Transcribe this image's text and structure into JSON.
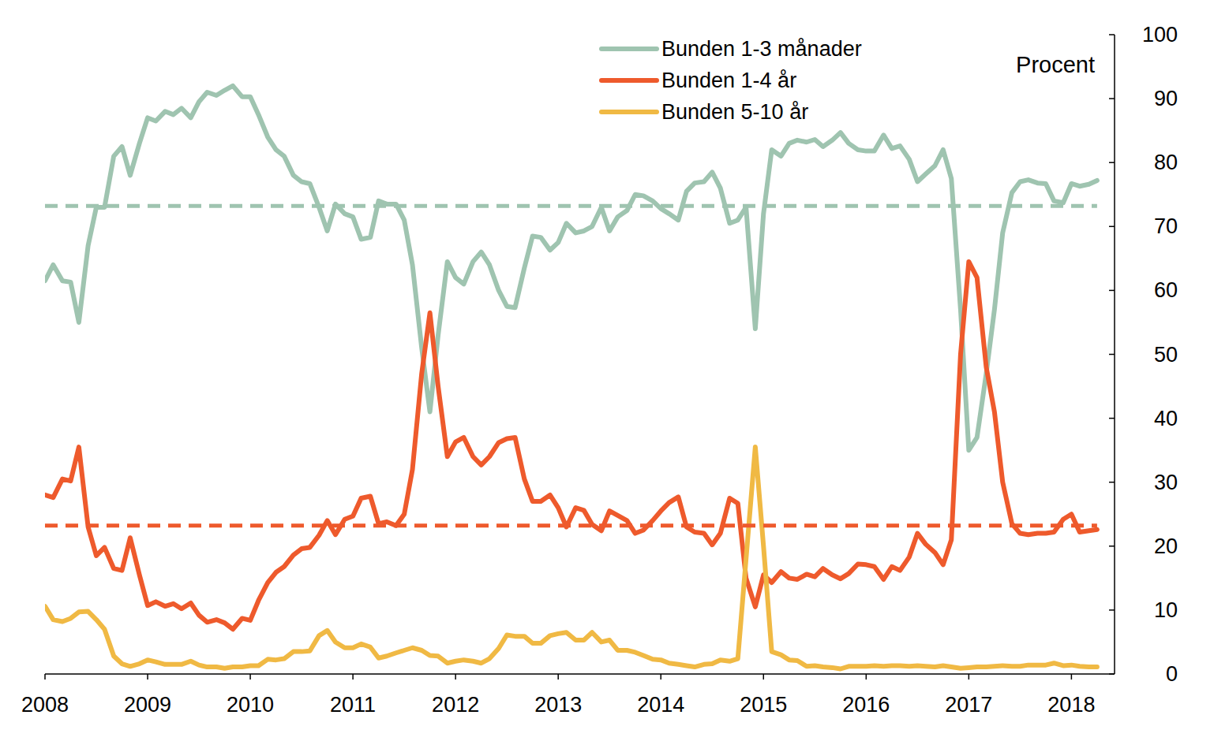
{
  "chart_data": {
    "type": "line",
    "y_label": "Procent",
    "legend": "top",
    "grid": false,
    "xlim": [
      2008,
      2018.42
    ],
    "xticks": [
      2008,
      2009,
      2010,
      2011,
      2012,
      2013,
      2014,
      2015,
      2016,
      2017,
      2018
    ],
    "ylim": [
      0,
      100
    ],
    "yticks": [
      0,
      10,
      20,
      30,
      40,
      50,
      60,
      70,
      80,
      90,
      100
    ],
    "x": [
      2008,
      2008.08,
      2008.17,
      2008.25,
      2008.33,
      2008.42,
      2008.5,
      2008.58,
      2008.67,
      2008.75,
      2008.83,
      2008.92,
      2009,
      2009.08,
      2009.17,
      2009.25,
      2009.33,
      2009.42,
      2009.5,
      2009.58,
      2009.67,
      2009.75,
      2009.83,
      2009.92,
      2010,
      2010.08,
      2010.17,
      2010.25,
      2010.33,
      2010.42,
      2010.5,
      2010.58,
      2010.67,
      2010.75,
      2010.83,
      2010.92,
      2011,
      2011.08,
      2011.17,
      2011.25,
      2011.33,
      2011.42,
      2011.5,
      2011.58,
      2011.67,
      2011.75,
      2011.83,
      2011.92,
      2012,
      2012.08,
      2012.17,
      2012.25,
      2012.33,
      2012.42,
      2012.5,
      2012.58,
      2012.67,
      2012.75,
      2012.83,
      2012.92,
      2013,
      2013.08,
      2013.17,
      2013.25,
      2013.33,
      2013.42,
      2013.5,
      2013.58,
      2013.67,
      2013.75,
      2013.83,
      2013.92,
      2014,
      2014.08,
      2014.17,
      2014.25,
      2014.33,
      2014.42,
      2014.5,
      2014.58,
      2014.67,
      2014.75,
      2014.83,
      2014.92,
      2015,
      2015.08,
      2015.17,
      2015.25,
      2015.33,
      2015.42,
      2015.5,
      2015.58,
      2015.67,
      2015.75,
      2015.83,
      2015.92,
      2016,
      2016.08,
      2016.17,
      2016.25,
      2016.33,
      2016.42,
      2016.5,
      2016.58,
      2016.67,
      2016.75,
      2016.83,
      2016.92,
      2017,
      2017.08,
      2017.17,
      2017.25,
      2017.33,
      2017.42,
      2017.5,
      2017.58,
      2017.67,
      2017.75,
      2017.83,
      2017.92,
      2018,
      2018.08,
      2018.17,
      2018.25
    ],
    "series": [
      {
        "name": "Bunden 1-3 månader",
        "color": "#9fc4b0",
        "line_style": "solid",
        "values": [
          61.5,
          64,
          61.5,
          61.3,
          55,
          67,
          73,
          73,
          81,
          82.5,
          78,
          83,
          87,
          86.5,
          88,
          87.5,
          88.5,
          87,
          89.5,
          91,
          90.5,
          91.3,
          92,
          90.3,
          90.3,
          87.5,
          84,
          82,
          81,
          78,
          77,
          76.7,
          73,
          69.3,
          73.5,
          72,
          71.5,
          68,
          68.3,
          74,
          73.5,
          73.5,
          71,
          64,
          51,
          41,
          53,
          64.5,
          62,
          61,
          64.5,
          66,
          64,
          60,
          57.5,
          57.3,
          63.5,
          68.5,
          68.3,
          66.3,
          67.5,
          70.5,
          69,
          69.3,
          70,
          73,
          69.3,
          71.5,
          72.5,
          75,
          74.8,
          74,
          72.8,
          72,
          71,
          75.5,
          76.8,
          77,
          78.5,
          76,
          70.5,
          71,
          73,
          54,
          72,
          82,
          81,
          83,
          83.5,
          83.2,
          83.6,
          82.5,
          83.5,
          84.7,
          83,
          82,
          81.8,
          81.8,
          84.3,
          82.2,
          82.6,
          80.5,
          77,
          78.2,
          79.5,
          82,
          77.5,
          57,
          35,
          37,
          47,
          57,
          69,
          75.3,
          77,
          77.3,
          76.8,
          76.7,
          74,
          73.7,
          76.7,
          76.3,
          76.6,
          77.2
        ]
      },
      {
        "name": "Bunden 1-4 år",
        "color": "#ee5a2c",
        "line_style": "solid",
        "values": [
          28,
          27.6,
          30.5,
          30.2,
          35.5,
          23,
          18.5,
          19.8,
          16.5,
          16.2,
          21.3,
          15.5,
          10.7,
          11.3,
          10.6,
          11,
          10.2,
          11.1,
          9.2,
          8.1,
          8.5,
          8,
          7,
          8.7,
          8.4,
          11.5,
          14.3,
          15.9,
          16.8,
          18.6,
          19.6,
          19.8,
          21.7,
          24,
          21.8,
          24.2,
          24.7,
          27.5,
          27.8,
          23.5,
          23.8,
          23.2,
          25,
          32,
          47,
          56.5,
          45,
          34,
          36.3,
          37,
          34,
          32.7,
          34,
          36.2,
          36.8,
          37,
          30.5,
          27,
          27,
          28,
          26,
          23,
          26,
          25.6,
          23.4,
          22.4,
          25.5,
          24.8,
          24,
          22,
          22.5,
          24,
          25.5,
          26.8,
          27.7,
          23,
          22.2,
          22,
          20.2,
          22,
          27.5,
          26.7,
          15,
          10.5,
          15.5,
          14.3,
          16,
          15,
          14.8,
          15.6,
          15.2,
          16.5,
          15.5,
          14.9,
          15.7,
          17.2,
          17.1,
          16.8,
          14.8,
          16.8,
          16.2,
          18.3,
          22,
          20.3,
          19,
          17.1,
          21,
          50,
          64.5,
          62,
          48,
          41,
          30,
          23.5,
          22,
          21.8,
          22,
          22,
          22.2,
          24.2,
          25,
          22.2,
          22.4,
          22.6
        ]
      },
      {
        "name": "Bunden 5-10 år",
        "color": "#f0b944",
        "line_style": "solid",
        "values": [
          10.6,
          8.5,
          8.2,
          8.7,
          9.7,
          9.8,
          8.5,
          7,
          2.8,
          1.6,
          1.2,
          1.6,
          2.2,
          1.9,
          1.5,
          1.5,
          1.5,
          2,
          1.4,
          1.1,
          1.1,
          0.9,
          1.1,
          1.1,
          1.3,
          1.3,
          2.3,
          2.2,
          2.4,
          3.5,
          3.5,
          3.6,
          6,
          6.8,
          5,
          4.1,
          4.1,
          4.7,
          4.2,
          2.5,
          2.8,
          3.3,
          3.7,
          4.1,
          3.7,
          2.9,
          2.8,
          1.7,
          2,
          2.2,
          2,
          1.7,
          2.4,
          4,
          6.1,
          5.9,
          5.9,
          4.8,
          4.8,
          6,
          6.3,
          6.5,
          5.3,
          5.3,
          6.5,
          5,
          5.3,
          3.7,
          3.7,
          3.4,
          2.9,
          2.3,
          2.2,
          1.7,
          1.5,
          1.3,
          1.1,
          1.5,
          1.6,
          2.2,
          2,
          2.4,
          18,
          35.5,
          20,
          3.5,
          3,
          2.2,
          2.1,
          1.2,
          1.3,
          1.1,
          1,
          0.8,
          1.2,
          1.2,
          1.2,
          1.3,
          1.2,
          1.3,
          1.3,
          1.2,
          1.3,
          1.2,
          1.1,
          1.3,
          1.1,
          0.9,
          1,
          1.1,
          1.1,
          1.2,
          1.3,
          1.2,
          1.2,
          1.4,
          1.4,
          1.4,
          1.7,
          1.3,
          1.4,
          1.2,
          1.1,
          1.1
        ]
      },
      {
        "color": "#9fc4b0",
        "line_style": "dashed",
        "x": [
          2008,
          2018.25
        ],
        "values": [
          73.2,
          73.2
        ]
      },
      {
        "color": "#ee5a2c",
        "line_style": "dashed",
        "x": [
          2008,
          2018.25
        ],
        "values": [
          23.2,
          23.2
        ]
      }
    ]
  }
}
